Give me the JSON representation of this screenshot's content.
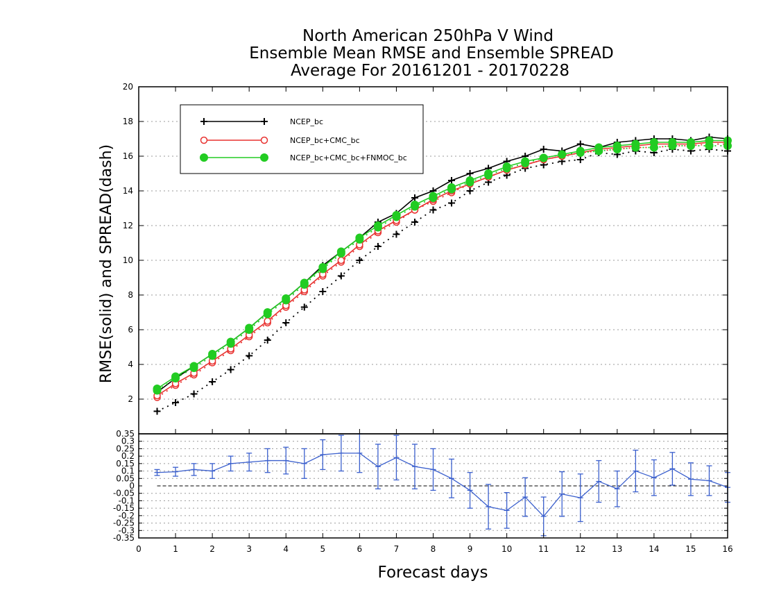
{
  "chart_data": [
    {
      "type": "line",
      "title_lines": [
        "North American 250hPa V Wind",
        "Ensemble Mean RMSE and Ensemble SPREAD",
        "Average For 20161201 - 20170228"
      ],
      "xlabel": "Forecast days",
      "ylabel": "RMSE(solid) and SPREAD(dash)",
      "xlim": [
        0,
        16
      ],
      "ylim": [
        0,
        20
      ],
      "xticks": [
        "0",
        "1",
        "2",
        "3",
        "4",
        "5",
        "6",
        "7",
        "8",
        "9",
        "10",
        "11",
        "12",
        "13",
        "14",
        "15",
        "16"
      ],
      "yticks": [
        "2",
        "4",
        "6",
        "8",
        "10",
        "12",
        "14",
        "16",
        "18",
        "20"
      ],
      "grid": "horizontal dotted",
      "legend_position": "top-left",
      "x": [
        0.5,
        1,
        1.5,
        2,
        2.5,
        3,
        3.5,
        4,
        4.5,
        5,
        5.5,
        6,
        6.5,
        7,
        7.5,
        8,
        8.5,
        9,
        9.5,
        10,
        10.5,
        11,
        11.5,
        12,
        12.5,
        13,
        13.5,
        14,
        14.5,
        15,
        15.5,
        16
      ],
      "series": [
        {
          "name": "NCEP_bc",
          "color": "#000000",
          "marker": "plus",
          "rmse": [
            2.4,
            3.2,
            3.9,
            4.6,
            5.3,
            6.1,
            7.0,
            7.8,
            8.7,
            9.7,
            10.5,
            11.3,
            12.2,
            12.7,
            13.6,
            14.0,
            14.6,
            15.0,
            15.3,
            15.7,
            16.0,
            16.4,
            16.3,
            16.7,
            16.5,
            16.8,
            16.9,
            17.0,
            17.0,
            16.9,
            17.1,
            17.0
          ],
          "spread": [
            1.3,
            1.8,
            2.3,
            3.0,
            3.7,
            4.5,
            5.4,
            6.4,
            7.3,
            8.2,
            9.1,
            10.0,
            10.8,
            11.5,
            12.2,
            12.9,
            13.3,
            14.0,
            14.5,
            14.9,
            15.3,
            15.5,
            15.7,
            15.8,
            16.2,
            16.1,
            16.3,
            16.2,
            16.4,
            16.3,
            16.4,
            16.3
          ]
        },
        {
          "name": "NCEP_bc+CMC_bc",
          "color": "#e8312f",
          "marker": "circle-open",
          "rmse": [
            2.2,
            2.9,
            3.5,
            4.2,
            4.9,
            5.7,
            6.5,
            7.4,
            8.3,
            9.2,
            10.0,
            10.9,
            11.7,
            12.3,
            12.9,
            13.5,
            14.0,
            14.4,
            14.8,
            15.2,
            15.5,
            15.8,
            16.0,
            16.2,
            16.4,
            16.5,
            16.6,
            16.7,
            16.7,
            16.7,
            16.8,
            16.8
          ],
          "spread": [
            2.1,
            2.8,
            3.4,
            4.1,
            4.8,
            5.6,
            6.4,
            7.3,
            8.2,
            9.1,
            9.9,
            10.8,
            11.6,
            12.2,
            12.9,
            13.4,
            13.9,
            14.4,
            14.8,
            15.2,
            15.5,
            15.8,
            16.0,
            16.2,
            16.3,
            16.4,
            16.5,
            16.5,
            16.6,
            16.6,
            16.7,
            16.7
          ]
        },
        {
          "name": "NCEP_bc+CMC_bc+FNMOC_bc",
          "color": "#22cc22",
          "marker": "circle-filled",
          "rmse": [
            2.6,
            3.3,
            3.9,
            4.6,
            5.3,
            6.1,
            7.0,
            7.8,
            8.7,
            9.6,
            10.5,
            11.3,
            12.0,
            12.6,
            13.2,
            13.7,
            14.2,
            14.6,
            15.0,
            15.4,
            15.7,
            15.9,
            16.1,
            16.3,
            16.5,
            16.6,
            16.7,
            16.8,
            16.8,
            16.8,
            16.9,
            16.9
          ],
          "spread": [
            2.5,
            3.2,
            3.8,
            4.5,
            5.2,
            6.0,
            6.9,
            7.7,
            8.6,
            9.5,
            10.4,
            11.2,
            11.9,
            12.5,
            13.1,
            13.6,
            14.1,
            14.5,
            14.9,
            15.3,
            15.6,
            15.9,
            16.1,
            16.2,
            16.3,
            16.4,
            16.5,
            16.5,
            16.6,
            16.6,
            16.6,
            16.6
          ]
        }
      ]
    },
    {
      "type": "line",
      "xlim": [
        0,
        16
      ],
      "ylim": [
        -0.35,
        0.35
      ],
      "yticks": [
        "-0.35",
        "-0.3",
        "-0.25",
        "-0.2",
        "-0.15",
        "-0.1",
        "-0.05",
        "0",
        "0.05",
        "0.1",
        "0.15",
        "0.2",
        "0.25",
        "0.3",
        "0.35"
      ],
      "grid": "horizontal dotted",
      "zero_line": "dashed",
      "series": [
        {
          "color": "#3a5fcd",
          "x": [
            0.5,
            1,
            1.5,
            2,
            2.5,
            3,
            3.5,
            4,
            4.5,
            5,
            5.5,
            6,
            6.5,
            7,
            7.5,
            8,
            8.5,
            9,
            9.5,
            10,
            10.5,
            11,
            11.5,
            12,
            12.5,
            13,
            13.5,
            14,
            14.5,
            15,
            15.5,
            16
          ],
          "values": [
            0.09,
            0.095,
            0.11,
            0.1,
            0.15,
            0.16,
            0.17,
            0.17,
            0.15,
            0.21,
            0.22,
            0.22,
            0.13,
            0.19,
            0.13,
            0.11,
            0.05,
            -0.03,
            -0.14,
            -0.165,
            -0.075,
            -0.205,
            -0.055,
            -0.08,
            0.03,
            -0.02,
            0.1,
            0.055,
            0.115,
            0.045,
            0.035,
            -0.01
          ],
          "error": [
            0.02,
            0.03,
            0.04,
            0.05,
            0.05,
            0.06,
            0.08,
            0.09,
            0.1,
            0.1,
            0.12,
            0.13,
            0.15,
            0.15,
            0.15,
            0.14,
            0.13,
            0.12,
            0.15,
            0.12,
            0.13,
            0.13,
            0.15,
            0.16,
            0.14,
            0.12,
            0.14,
            0.12,
            0.11,
            0.11,
            0.1,
            0.1
          ]
        }
      ]
    }
  ]
}
